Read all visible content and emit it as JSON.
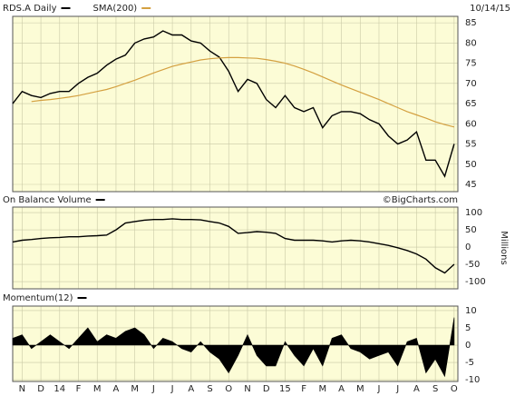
{
  "chart_data": [
    {
      "type": "line",
      "date_label": "10/14/15",
      "x": [
        0,
        0.5,
        1,
        1.5,
        2,
        2.5,
        3,
        3.5,
        4,
        4.5,
        5,
        5.5,
        6,
        6.5,
        7,
        7.5,
        8,
        8.5,
        9,
        9.5,
        10,
        10.5,
        11,
        11.5,
        12,
        12.5,
        13,
        13.5,
        14,
        14.5,
        15,
        15.5,
        16,
        16.5,
        17,
        17.5,
        18,
        18.5,
        19,
        19.5,
        20,
        20.5,
        21,
        21.5,
        22,
        22.5,
        23,
        23.5
      ],
      "series": [
        {
          "name": "RDS.A Daily",
          "color": "#000000",
          "values": [
            65,
            68,
            67,
            66.5,
            67.5,
            68,
            68,
            70,
            71.5,
            72.5,
            74.5,
            76,
            77,
            80,
            81,
            81.5,
            83,
            82,
            82,
            80.5,
            80,
            78,
            76.5,
            73,
            68,
            71,
            70,
            66,
            64,
            67,
            64,
            63,
            64,
            59,
            62,
            63,
            63,
            62.5,
            61,
            60,
            57,
            55,
            56,
            58,
            51,
            51,
            47,
            55
          ]
        },
        {
          "name": "SMA(200)",
          "color": "#d4a040",
          "values": [
            null,
            null,
            65.5,
            65.8,
            66,
            66.3,
            66.6,
            67,
            67.5,
            68,
            68.5,
            69.2,
            70,
            70.8,
            71.7,
            72.6,
            73.4,
            74.2,
            74.8,
            75.3,
            75.8,
            76.1,
            76.3,
            76.4,
            76.4,
            76.3,
            76.2,
            75.9,
            75.5,
            75,
            74.3,
            73.5,
            72.6,
            71.6,
            70.6,
            69.6,
            68.7,
            67.8,
            66.9,
            66,
            65,
            64,
            63,
            62.2,
            61.4,
            60.5,
            59.8,
            59.2
          ]
        }
      ],
      "xlim": [
        0,
        23.7
      ],
      "xticks": [
        0.5,
        1.5,
        2.5,
        3.5,
        4.5,
        5.5,
        6.5,
        7.5,
        8.5,
        9.5,
        10.5,
        11.5,
        12.5,
        13.5,
        14.5,
        15.5,
        16.5,
        17.5,
        18.5,
        19.5,
        20.5,
        21.5,
        22.5,
        23.5
      ],
      "ylim": [
        43.2,
        86.6
      ],
      "yticks": [
        45,
        50,
        55,
        60,
        65,
        70,
        75,
        80,
        85
      ],
      "grid": true
    },
    {
      "type": "line",
      "annotation": "©BigCharts.com",
      "y_label": "Millions",
      "x": [
        0,
        0.5,
        1,
        1.5,
        2,
        2.5,
        3,
        3.5,
        4,
        4.5,
        5,
        5.5,
        6,
        6.5,
        7,
        7.5,
        8,
        8.5,
        9,
        9.5,
        10,
        10.5,
        11,
        11.5,
        12,
        12.5,
        13,
        13.5,
        14,
        14.5,
        15,
        15.5,
        16,
        16.5,
        17,
        17.5,
        18,
        18.5,
        19,
        19.5,
        20,
        20.5,
        21,
        21.5,
        22,
        22.5,
        23,
        23.5
      ],
      "series": [
        {
          "name": "On Balance Volume",
          "color": "#000000",
          "values": [
            15,
            20,
            22,
            25,
            27,
            28,
            30,
            30,
            32,
            33,
            35,
            50,
            70,
            74,
            78,
            80,
            80,
            82,
            80,
            80,
            79,
            74,
            70,
            60,
            40,
            42,
            45,
            43,
            40,
            25,
            20,
            20,
            20,
            18,
            15,
            18,
            20,
            18,
            15,
            10,
            5,
            -2,
            -10,
            -20,
            -35,
            -60,
            -75,
            -50
          ]
        }
      ],
      "xlim": [
        0,
        23.7
      ],
      "xticks": [
        0.5,
        1.5,
        2.5,
        3.5,
        4.5,
        5.5,
        6.5,
        7.5,
        8.5,
        9.5,
        10.5,
        11.5,
        12.5,
        13.5,
        14.5,
        15.5,
        16.5,
        17.5,
        18.5,
        19.5,
        20.5,
        21.5,
        22.5,
        23.5
      ],
      "ylim": [
        -121,
        116
      ],
      "yticks": [
        -100,
        -50,
        0,
        50,
        100
      ],
      "grid": true
    },
    {
      "type": "area",
      "x": [
        0,
        0.5,
        1,
        1.5,
        2,
        2.5,
        3,
        3.5,
        4,
        4.5,
        5,
        5.5,
        6,
        6.5,
        7,
        7.5,
        8,
        8.5,
        9,
        9.5,
        10,
        10.5,
        11,
        11.5,
        12,
        12.5,
        13,
        13.5,
        14,
        14.5,
        15,
        15.5,
        16,
        16.5,
        17,
        17.5,
        18,
        18.5,
        19,
        19.5,
        20,
        20.5,
        21,
        21.5,
        22,
        22.5,
        23,
        23.5
      ],
      "series": [
        {
          "name": "Momentum(12)",
          "color": "#000000",
          "values": [
            2,
            3,
            -1,
            1,
            3,
            1,
            -1,
            2,
            5,
            1,
            3,
            2,
            4,
            5,
            3,
            -1,
            2,
            1,
            -1,
            -2,
            1,
            -2,
            -4,
            -8,
            -3,
            3,
            -3,
            -6,
            -6,
            1,
            -3,
            -6,
            -1,
            -6,
            2,
            3,
            -1,
            -2,
            -4,
            -3,
            -2,
            -6,
            1,
            2,
            -8,
            -4,
            -9,
            8
          ]
        }
      ],
      "xlim": [
        0,
        23.7
      ],
      "xticks": [
        {
          "value": 0.5,
          "label": "N"
        },
        {
          "value": 1.5,
          "label": "D"
        },
        {
          "value": 2.5,
          "label": "14"
        },
        {
          "value": 3.5,
          "label": "F"
        },
        {
          "value": 4.5,
          "label": "M"
        },
        {
          "value": 5.5,
          "label": "A"
        },
        {
          "value": 6.5,
          "label": "M"
        },
        {
          "value": 7.5,
          "label": "J"
        },
        {
          "value": 8.5,
          "label": "J"
        },
        {
          "value": 9.5,
          "label": "A"
        },
        {
          "value": 10.5,
          "label": "S"
        },
        {
          "value": 11.5,
          "label": "O"
        },
        {
          "value": 12.5,
          "label": "N"
        },
        {
          "value": 13.5,
          "label": "D"
        },
        {
          "value": 14.5,
          "label": "15"
        },
        {
          "value": 15.5,
          "label": "F"
        },
        {
          "value": 16.5,
          "label": "M"
        },
        {
          "value": 17.5,
          "label": "A"
        },
        {
          "value": 18.5,
          "label": "M"
        },
        {
          "value": 19.5,
          "label": "J"
        },
        {
          "value": 20.5,
          "label": "J"
        },
        {
          "value": 21.5,
          "label": "A"
        },
        {
          "value": 22.5,
          "label": "S"
        },
        {
          "value": 23.5,
          "label": "O"
        }
      ],
      "ylim": [
        -10.5,
        11.3
      ],
      "yticks": [
        -10,
        -5,
        0,
        5,
        10
      ],
      "grid": true
    }
  ]
}
